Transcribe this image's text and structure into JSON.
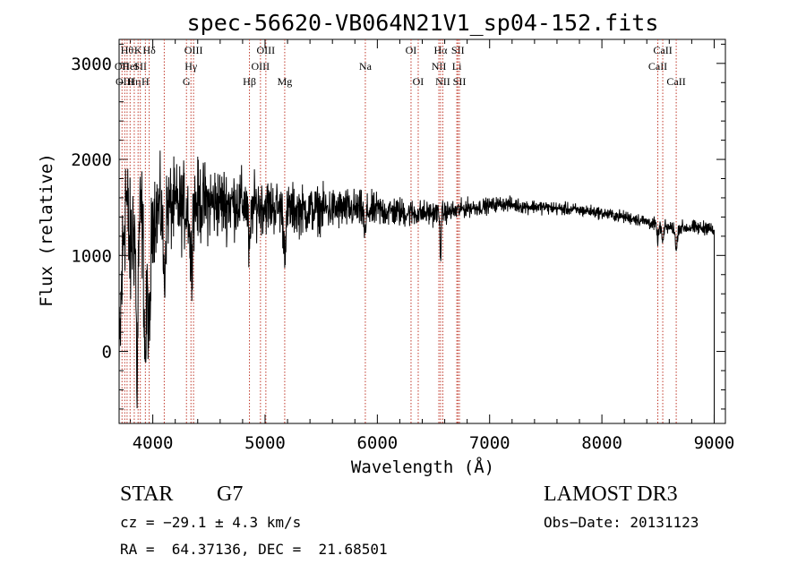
{
  "chart_data": {
    "type": "line",
    "title": "spec-56620-VB064N21V1_sp04-152.fits",
    "xlabel": "Wavelength (Å)",
    "ylabel": "Flux (relative)",
    "xlim": [
      3700,
      9100
    ],
    "ylim": [
      -750,
      3250
    ],
    "xticks": [
      4000,
      5000,
      6000,
      7000,
      8000,
      9000
    ],
    "yticks": [
      0,
      1000,
      2000,
      3000
    ],
    "series_color": "#000000",
    "line_color": "#c0392b",
    "spectrum_anchors": [
      [
        3700,
        -300
      ],
      [
        3720,
        600
      ],
      [
        3740,
        1200
      ],
      [
        3760,
        1700
      ],
      [
        3780,
        1300
      ],
      [
        3800,
        1000
      ],
      [
        3820,
        1250
      ],
      [
        3850,
        1300
      ],
      [
        3880,
        1350
      ],
      [
        3900,
        1400
      ],
      [
        3950,
        1450
      ],
      [
        4000,
        1450
      ],
      [
        4100,
        1500
      ],
      [
        4200,
        1500
      ],
      [
        4300,
        1500
      ],
      [
        4400,
        1550
      ],
      [
        4500,
        1550
      ],
      [
        4600,
        1550
      ],
      [
        4700,
        1550
      ],
      [
        4800,
        1550
      ],
      [
        4900,
        1520
      ],
      [
        5000,
        1520
      ],
      [
        5100,
        1500
      ],
      [
        5200,
        1480
      ],
      [
        5300,
        1470
      ],
      [
        5400,
        1470
      ],
      [
        5500,
        1480
      ],
      [
        5600,
        1480
      ],
      [
        5700,
        1480
      ],
      [
        5800,
        1480
      ],
      [
        5900,
        1460
      ],
      [
        6000,
        1470
      ],
      [
        6100,
        1460
      ],
      [
        6200,
        1450
      ],
      [
        6300,
        1440
      ],
      [
        6400,
        1440
      ],
      [
        6500,
        1440
      ],
      [
        6600,
        1450
      ],
      [
        6700,
        1460
      ],
      [
        6800,
        1500
      ],
      [
        6900,
        1500
      ],
      [
        7000,
        1520
      ],
      [
        7100,
        1540
      ],
      [
        7200,
        1530
      ],
      [
        7300,
        1510
      ],
      [
        7400,
        1510
      ],
      [
        7500,
        1500
      ],
      [
        7600,
        1490
      ],
      [
        7700,
        1480
      ],
      [
        7800,
        1470
      ],
      [
        7900,
        1460
      ],
      [
        8000,
        1440
      ],
      [
        8100,
        1420
      ],
      [
        8200,
        1400
      ],
      [
        8300,
        1380
      ],
      [
        8400,
        1350
      ],
      [
        8500,
        1310
      ],
      [
        8600,
        1290
      ],
      [
        8700,
        1290
      ],
      [
        8800,
        1290
      ],
      [
        8900,
        1280
      ],
      [
        8950,
        1310
      ],
      [
        8980,
        1250
      ],
      [
        9000,
        1250
      ]
    ],
    "spectrum_dips": [
      [
        3934,
        -300,
        12
      ],
      [
        3968,
        -100,
        12
      ],
      [
        3860,
        -500,
        8
      ],
      [
        4102,
        600,
        10
      ],
      [
        4340,
        800,
        10
      ],
      [
        4861,
        900,
        10
      ],
      [
        5175,
        1050,
        12
      ],
      [
        5890,
        1150,
        8
      ],
      [
        6563,
        950,
        6
      ],
      [
        8542,
        1100,
        8
      ],
      [
        8662,
        1000,
        8
      ],
      [
        8498,
        1150,
        8
      ]
    ],
    "noise_amplitude_profile": [
      [
        3700,
        700
      ],
      [
        3900,
        550
      ],
      [
        4000,
        420
      ],
      [
        4400,
        380
      ],
      [
        5000,
        260
      ],
      [
        6000,
        160
      ],
      [
        6500,
        110
      ],
      [
        7000,
        70
      ],
      [
        8000,
        55
      ],
      [
        9000,
        70
      ]
    ],
    "line_markers": [
      {
        "wl": 3726,
        "row": 1,
        "label": "OII"
      },
      {
        "wl": 3750,
        "row": 2,
        "label": "OIII"
      },
      {
        "wl": 3771,
        "row": 0,
        "label": "Hθ"
      },
      {
        "wl": 3798,
        "row": 1,
        "label": "HeI"
      },
      {
        "wl": 3835,
        "row": 2,
        "label": "Hη"
      },
      {
        "wl": 3869,
        "row": 0,
        "label": "K"
      },
      {
        "wl": 3889,
        "row": 1,
        "label": "SII"
      },
      {
        "wl": 3934,
        "row": 2,
        "label": "H"
      },
      {
        "wl": 3968,
        "row": 0,
        "label": "Hδ"
      },
      {
        "wl": 4102,
        "row": 1,
        "label": ""
      },
      {
        "wl": 4300,
        "row": 2,
        "label": "G"
      },
      {
        "wl": 4340,
        "row": 1,
        "label": "Hγ"
      },
      {
        "wl": 4363,
        "row": 0,
        "label": "OIII"
      },
      {
        "wl": 4861,
        "row": 2,
        "label": "Hβ"
      },
      {
        "wl": 4959,
        "row": 1,
        "label": "OIII"
      },
      {
        "wl": 5007,
        "row": 0,
        "label": "OIII"
      },
      {
        "wl": 5175,
        "row": 2,
        "label": "Mg"
      },
      {
        "wl": 5893,
        "row": 1,
        "label": "Na"
      },
      {
        "wl": 6300,
        "row": 0,
        "label": "OI"
      },
      {
        "wl": 6364,
        "row": 2,
        "label": "OI"
      },
      {
        "wl": 6548,
        "row": 1,
        "label": "NII"
      },
      {
        "wl": 6563,
        "row": 0,
        "label": "Hα"
      },
      {
        "wl": 6583,
        "row": 2,
        "label": "NII"
      },
      {
        "wl": 6708,
        "row": 1,
        "label": "Li"
      },
      {
        "wl": 6717,
        "row": 0,
        "label": "SII"
      },
      {
        "wl": 6731,
        "row": 2,
        "label": "SII"
      },
      {
        "wl": 8498,
        "row": 1,
        "label": "CaII"
      },
      {
        "wl": 8542,
        "row": 0,
        "label": "CaII"
      },
      {
        "wl": 8662,
        "row": 2,
        "label": "CaII"
      }
    ]
  },
  "info": {
    "object_class": "STAR",
    "subclass": "G7",
    "survey": "LAMOST DR3",
    "cz": "cz = −29.1 ± 4.3 km/s",
    "obs_date": "Obs−Date: 20131123",
    "coords": "RA =  64.37136, DEC =  21.68501"
  }
}
